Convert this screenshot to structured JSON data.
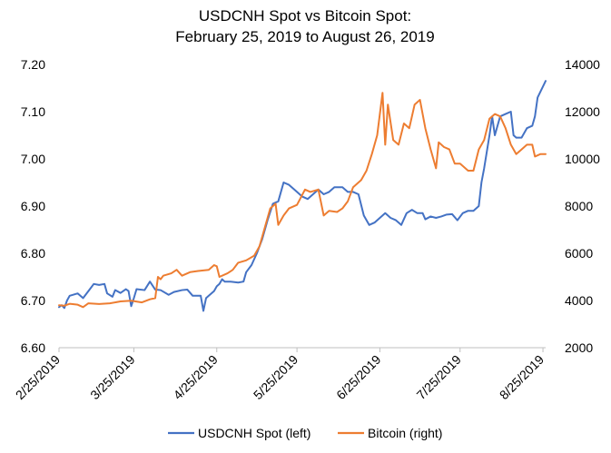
{
  "chart_data": {
    "type": "line",
    "title_lines": [
      "USDCNH Spot vs Bitcoin Spot:",
      "February 25, 2019 to August 26, 2019"
    ],
    "x_tick_labels": [
      "2/25/2019",
      "3/25/2019",
      "4/25/2019",
      "5/25/2019",
      "6/25/2019",
      "7/25/2019",
      "8/25/2019"
    ],
    "x_tick_dates": [
      "2019-02-25",
      "2019-03-25",
      "2019-04-25",
      "2019-05-25",
      "2019-06-25",
      "2019-07-25",
      "2019-08-25"
    ],
    "x_range": [
      "2019-02-25",
      "2019-08-26"
    ],
    "y_left": {
      "ylim": [
        6.6,
        7.2
      ],
      "ticks": [
        "6.60",
        "6.70",
        "6.80",
        "6.90",
        "7.00",
        "7.10",
        "7.20"
      ]
    },
    "y_right": {
      "ylim": [
        2000,
        14000
      ],
      "ticks": [
        "2000",
        "4000",
        "6000",
        "8000",
        "10000",
        "12000",
        "14000"
      ]
    },
    "legend_position": "bottom",
    "grid": false,
    "series": [
      {
        "name": "USDCNH Spot (left)",
        "axis": "left",
        "color": "#4472C4",
        "points": [
          [
            "2019-02-25",
            6.686
          ],
          [
            "2019-02-26",
            6.69
          ],
          [
            "2019-02-27",
            6.684
          ],
          [
            "2019-02-28",
            6.7
          ],
          [
            "2019-03-01",
            6.71
          ],
          [
            "2019-03-04",
            6.715
          ],
          [
            "2019-03-06",
            6.705
          ],
          [
            "2019-03-08",
            6.72
          ],
          [
            "2019-03-10",
            6.735
          ],
          [
            "2019-03-12",
            6.733
          ],
          [
            "2019-03-14",
            6.735
          ],
          [
            "2019-03-15",
            6.715
          ],
          [
            "2019-03-17",
            6.708
          ],
          [
            "2019-03-18",
            6.722
          ],
          [
            "2019-03-20",
            6.716
          ],
          [
            "2019-03-22",
            6.724
          ],
          [
            "2019-03-23",
            6.72
          ],
          [
            "2019-03-24",
            6.688
          ],
          [
            "2019-03-25",
            6.705
          ],
          [
            "2019-03-26",
            6.724
          ],
          [
            "2019-03-29",
            6.722
          ],
          [
            "2019-03-31",
            6.74
          ],
          [
            "2019-04-02",
            6.723
          ],
          [
            "2019-04-04",
            6.722
          ],
          [
            "2019-04-07",
            6.712
          ],
          [
            "2019-04-09",
            6.718
          ],
          [
            "2019-04-12",
            6.722
          ],
          [
            "2019-04-14",
            6.723
          ],
          [
            "2019-04-16",
            6.71
          ],
          [
            "2019-04-19",
            6.71
          ],
          [
            "2019-04-20",
            6.678
          ],
          [
            "2019-04-21",
            6.705
          ],
          [
            "2019-04-22",
            6.71
          ],
          [
            "2019-04-24",
            6.72
          ],
          [
            "2019-04-25",
            6.73
          ],
          [
            "2019-04-26",
            6.735
          ],
          [
            "2019-04-27",
            6.745
          ],
          [
            "2019-04-28",
            6.74
          ],
          [
            "2019-04-30",
            6.74
          ],
          [
            "2019-05-03",
            6.738
          ],
          [
            "2019-05-05",
            6.74
          ],
          [
            "2019-05-06",
            6.76
          ],
          [
            "2019-05-08",
            6.775
          ],
          [
            "2019-05-10",
            6.8
          ],
          [
            "2019-05-12",
            6.83
          ],
          [
            "2019-05-14",
            6.87
          ],
          [
            "2019-05-16",
            6.905
          ],
          [
            "2019-05-18",
            6.91
          ],
          [
            "2019-05-20",
            6.95
          ],
          [
            "2019-05-22",
            6.945
          ],
          [
            "2019-05-24",
            6.935
          ],
          [
            "2019-05-27",
            6.92
          ],
          [
            "2019-05-29",
            6.915
          ],
          [
            "2019-05-31",
            6.925
          ],
          [
            "2019-06-02",
            6.935
          ],
          [
            "2019-06-04",
            6.925
          ],
          [
            "2019-06-06",
            6.93
          ],
          [
            "2019-06-08",
            6.94
          ],
          [
            "2019-06-11",
            6.94
          ],
          [
            "2019-06-13",
            6.93
          ],
          [
            "2019-06-15",
            6.93
          ],
          [
            "2019-06-17",
            6.925
          ],
          [
            "2019-06-19",
            6.88
          ],
          [
            "2019-06-21",
            6.86
          ],
          [
            "2019-06-23",
            6.865
          ],
          [
            "2019-06-25",
            6.875
          ],
          [
            "2019-06-27",
            6.885
          ],
          [
            "2019-06-29",
            6.875
          ],
          [
            "2019-07-01",
            6.87
          ],
          [
            "2019-07-03",
            6.86
          ],
          [
            "2019-07-05",
            6.885
          ],
          [
            "2019-07-07",
            6.892
          ],
          [
            "2019-07-09",
            6.885
          ],
          [
            "2019-07-11",
            6.885
          ],
          [
            "2019-07-12",
            6.872
          ],
          [
            "2019-07-14",
            6.878
          ],
          [
            "2019-07-16",
            6.875
          ],
          [
            "2019-07-18",
            6.878
          ],
          [
            "2019-07-20",
            6.882
          ],
          [
            "2019-07-22",
            6.883
          ],
          [
            "2019-07-24",
            6.87
          ],
          [
            "2019-07-26",
            6.885
          ],
          [
            "2019-07-28",
            6.89
          ],
          [
            "2019-07-30",
            6.89
          ],
          [
            "2019-08-01",
            6.9
          ],
          [
            "2019-08-02",
            6.95
          ],
          [
            "2019-08-03",
            6.98
          ],
          [
            "2019-08-05",
            7.05
          ],
          [
            "2019-08-06",
            7.09
          ],
          [
            "2019-08-07",
            7.05
          ],
          [
            "2019-08-09",
            7.09
          ],
          [
            "2019-08-11",
            7.095
          ],
          [
            "2019-08-13",
            7.1
          ],
          [
            "2019-08-14",
            7.05
          ],
          [
            "2019-08-15",
            7.045
          ],
          [
            "2019-08-17",
            7.045
          ],
          [
            "2019-08-19",
            7.065
          ],
          [
            "2019-08-21",
            7.07
          ],
          [
            "2019-08-22",
            7.09
          ],
          [
            "2019-08-23",
            7.13
          ],
          [
            "2019-08-26",
            7.165
          ]
        ]
      },
      {
        "name": "Bitcoin (right)",
        "axis": "right",
        "color": "#ED7D31",
        "points": [
          [
            "2019-02-25",
            3800
          ],
          [
            "2019-02-27",
            3780
          ],
          [
            "2019-03-01",
            3860
          ],
          [
            "2019-03-04",
            3820
          ],
          [
            "2019-03-06",
            3720
          ],
          [
            "2019-03-08",
            3880
          ],
          [
            "2019-03-12",
            3850
          ],
          [
            "2019-03-16",
            3880
          ],
          [
            "2019-03-20",
            3960
          ],
          [
            "2019-03-24",
            3990
          ],
          [
            "2019-03-28",
            3920
          ],
          [
            "2019-03-31",
            4050
          ],
          [
            "2019-04-02",
            4100
          ],
          [
            "2019-04-03",
            5000
          ],
          [
            "2019-04-04",
            4900
          ],
          [
            "2019-04-05",
            5050
          ],
          [
            "2019-04-08",
            5150
          ],
          [
            "2019-04-10",
            5300
          ],
          [
            "2019-04-12",
            5050
          ],
          [
            "2019-04-15",
            5200
          ],
          [
            "2019-04-18",
            5250
          ],
          [
            "2019-04-22",
            5300
          ],
          [
            "2019-04-24",
            5500
          ],
          [
            "2019-04-25",
            5450
          ],
          [
            "2019-04-26",
            5000
          ],
          [
            "2019-04-29",
            5150
          ],
          [
            "2019-05-01",
            5300
          ],
          [
            "2019-05-03",
            5600
          ],
          [
            "2019-05-06",
            5700
          ],
          [
            "2019-05-09",
            5900
          ],
          [
            "2019-05-11",
            6300
          ],
          [
            "2019-05-13",
            7100
          ],
          [
            "2019-05-15",
            7900
          ],
          [
            "2019-05-17",
            8100
          ],
          [
            "2019-05-18",
            7200
          ],
          [
            "2019-05-20",
            7600
          ],
          [
            "2019-05-22",
            7900
          ],
          [
            "2019-05-25",
            8050
          ],
          [
            "2019-05-28",
            8700
          ],
          [
            "2019-05-30",
            8600
          ],
          [
            "2019-06-02",
            8700
          ],
          [
            "2019-06-04",
            7600
          ],
          [
            "2019-06-06",
            7800
          ],
          [
            "2019-06-09",
            7750
          ],
          [
            "2019-06-11",
            7900
          ],
          [
            "2019-06-13",
            8200
          ],
          [
            "2019-06-15",
            8800
          ],
          [
            "2019-06-18",
            9100
          ],
          [
            "2019-06-20",
            9500
          ],
          [
            "2019-06-22",
            10200
          ],
          [
            "2019-06-24",
            11000
          ],
          [
            "2019-06-26",
            12800
          ],
          [
            "2019-06-27",
            10600
          ],
          [
            "2019-06-28",
            12300
          ],
          [
            "2019-06-30",
            10800
          ],
          [
            "2019-07-02",
            10600
          ],
          [
            "2019-07-04",
            11500
          ],
          [
            "2019-07-06",
            11300
          ],
          [
            "2019-07-08",
            12300
          ],
          [
            "2019-07-10",
            12500
          ],
          [
            "2019-07-12",
            11300
          ],
          [
            "2019-07-14",
            10400
          ],
          [
            "2019-07-16",
            9600
          ],
          [
            "2019-07-17",
            10700
          ],
          [
            "2019-07-19",
            10500
          ],
          [
            "2019-07-21",
            10400
          ],
          [
            "2019-07-23",
            9800
          ],
          [
            "2019-07-25",
            9800
          ],
          [
            "2019-07-28",
            9500
          ],
          [
            "2019-07-30",
            9500
          ],
          [
            "2019-08-01",
            10400
          ],
          [
            "2019-08-03",
            10800
          ],
          [
            "2019-08-05",
            11700
          ],
          [
            "2019-08-07",
            11900
          ],
          [
            "2019-08-09",
            11800
          ],
          [
            "2019-08-11",
            11300
          ],
          [
            "2019-08-13",
            10600
          ],
          [
            "2019-08-15",
            10200
          ],
          [
            "2019-08-17",
            10400
          ],
          [
            "2019-08-19",
            10600
          ],
          [
            "2019-08-21",
            10600
          ],
          [
            "2019-08-22",
            10100
          ],
          [
            "2019-08-24",
            10200
          ],
          [
            "2019-08-26",
            10200
          ]
        ]
      }
    ]
  }
}
